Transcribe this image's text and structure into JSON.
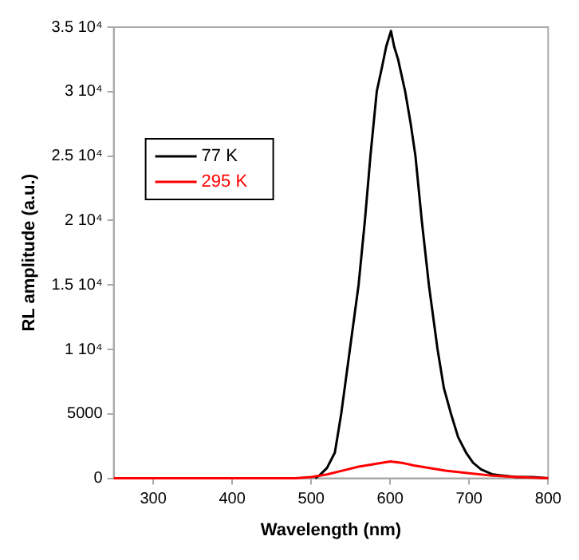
{
  "chart_data": {
    "type": "line",
    "xlabel": "Wavelength (nm)",
    "ylabel": "RL amplitude (a.u.)",
    "xlim": [
      250,
      800
    ],
    "xticks": [
      300,
      400,
      500,
      600,
      700,
      800
    ],
    "ylim": [
      0,
      35000
    ],
    "yticks": [
      0,
      5000,
      {
        "value": 10000,
        "label": "1 10⁴"
      },
      {
        "value": 15000,
        "label": "1.5 10⁴"
      },
      {
        "value": 20000,
        "label": "2 10⁴"
      },
      {
        "value": 25000,
        "label": "2.5 10⁴"
      },
      {
        "value": 30000,
        "label": "3 10⁴"
      },
      {
        "value": 35000,
        "label": "3.5 10⁴"
      }
    ],
    "grid": false,
    "legend": "top left",
    "marker": "none",
    "line_style": "solid",
    "series": [
      {
        "name": "77 K",
        "color": "#000000",
        "x": [
          505,
          510,
          520,
          530,
          538,
          549,
          560,
          568,
          575,
          583,
          590,
          595,
          601,
          605,
          610,
          619,
          626,
          632,
          640,
          649,
          660,
          668,
          677,
          686,
          696,
          705,
          715,
          730,
          745,
          760,
          780,
          800
        ],
        "values": [
          0,
          200,
          800,
          2000,
          5000,
          10000,
          15000,
          20000,
          25000,
          30000,
          32000,
          33500,
          34700,
          33500,
          32500,
          30000,
          27500,
          25000,
          20000,
          15000,
          10000,
          7000,
          5000,
          3200,
          2000,
          1200,
          700,
          300,
          200,
          100,
          100,
          0
        ]
      },
      {
        "name": "295 K",
        "color": "#ff0000",
        "x": [
          250,
          300,
          400,
          480,
          500,
          520,
          540,
          560,
          580,
          600,
          615,
          630,
          650,
          670,
          700,
          730,
          760,
          800
        ],
        "values": [
          0,
          0,
          0,
          0,
          100,
          300,
          600,
          900,
          1100,
          1300,
          1200,
          1000,
          800,
          600,
          400,
          200,
          100,
          0
        ]
      }
    ]
  }
}
